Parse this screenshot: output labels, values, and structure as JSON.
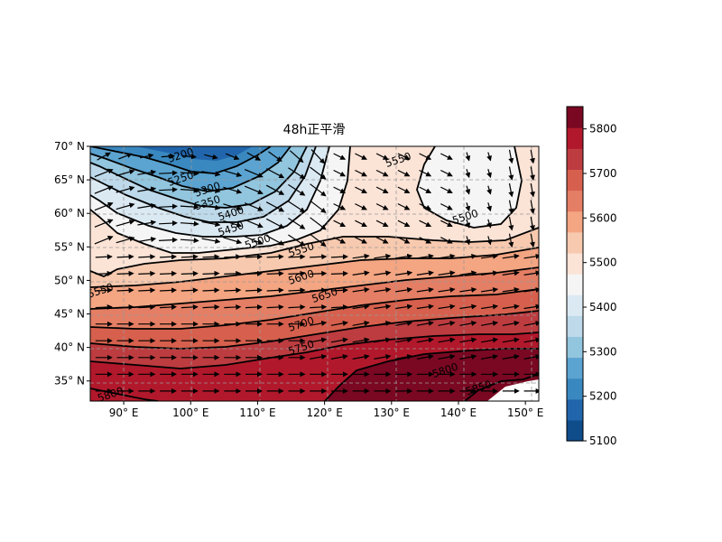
{
  "chart_data": {
    "type": "heatmap",
    "title": "48h正平滑",
    "projection": "PlateCarree",
    "field": "500hPa geopotential height filled contours with contour lines and wind vectors",
    "lon_range": [
      85,
      152
    ],
    "lat_range": [
      32,
      70
    ],
    "grid": true,
    "x_ticks": [
      {
        "value": 90,
        "label": "90° E"
      },
      {
        "value": 100,
        "label": "100° E"
      },
      {
        "value": 110,
        "label": "110° E"
      },
      {
        "value": 120,
        "label": "120° E"
      },
      {
        "value": 130,
        "label": "130° E"
      },
      {
        "value": 140,
        "label": "140° E"
      },
      {
        "value": 150,
        "label": "150° E"
      }
    ],
    "y_ticks": [
      {
        "value": 35,
        "label": "35° N"
      },
      {
        "value": 40,
        "label": "40° N"
      },
      {
        "value": 45,
        "label": "45° N"
      },
      {
        "value": 50,
        "label": "50° N"
      },
      {
        "value": 55,
        "label": "55° N"
      },
      {
        "value": 60,
        "label": "60° N"
      },
      {
        "value": 65,
        "label": "65° N"
      },
      {
        "value": 70,
        "label": "70° N"
      }
    ],
    "colorbar": {
      "range": [
        5100,
        5850
      ],
      "step": 50,
      "tick_labels": [
        "5100",
        "5200",
        "5300",
        "5400",
        "5500",
        "5600",
        "5700",
        "5800"
      ],
      "colors": [
        "#0f4c8a",
        "#2166ac",
        "#3a88c0",
        "#5ba3d0",
        "#92c5de",
        "#bdd9ea",
        "#dbe9f3",
        "#f5f5f5",
        "#fbe3d6",
        "#f7c9ae",
        "#f4a582",
        "#e47e64",
        "#d6604d",
        "#bd3c40",
        "#b2182b",
        "#7a0822"
      ]
    },
    "contour_labels": [
      {
        "text": "5200",
        "lon": 98.5,
        "lat": 68.7
      },
      {
        "text": "5250",
        "lon": 98.5,
        "lat": 65.2
      },
      {
        "text": "5300",
        "lon": 102.5,
        "lat": 63.6
      },
      {
        "text": "5350",
        "lon": 102.5,
        "lat": 61.6
      },
      {
        "text": "5400",
        "lon": 106.0,
        "lat": 60.0
      },
      {
        "text": "5450",
        "lon": 106.0,
        "lat": 57.7
      },
      {
        "text": "5500",
        "lon": 110.0,
        "lat": 55.8
      },
      {
        "text": "5550",
        "lon": 116.5,
        "lat": 54.6
      },
      {
        "text": "5550",
        "lon": 86.5,
        "lat": 48.5
      },
      {
        "text": "5550",
        "lon": 131.0,
        "lat": 68.0
      },
      {
        "text": "5500",
        "lon": 141.0,
        "lat": 59.5
      },
      {
        "text": "5600",
        "lon": 116.5,
        "lat": 50.5
      },
      {
        "text": "5650",
        "lon": 120.0,
        "lat": 47.8
      },
      {
        "text": "5700",
        "lon": 116.5,
        "lat": 43.5
      },
      {
        "text": "5750",
        "lon": 116.5,
        "lat": 40.0
      },
      {
        "text": "5800",
        "lon": 138.0,
        "lat": 36.6
      },
      {
        "text": "5850",
        "lon": 143.0,
        "lat": 34.0
      },
      {
        "text": "5800",
        "lon": 88.0,
        "lat": 33.0
      }
    ]
  }
}
